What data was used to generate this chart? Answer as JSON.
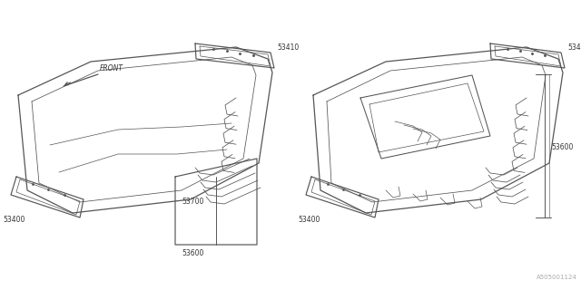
{
  "bg_color": "#ffffff",
  "line_color": "#444444",
  "text_color": "#333333",
  "fig_width": 6.4,
  "fig_height": 3.2,
  "dpi": 100,
  "watermark": "A505001124",
  "lc": "#555555"
}
